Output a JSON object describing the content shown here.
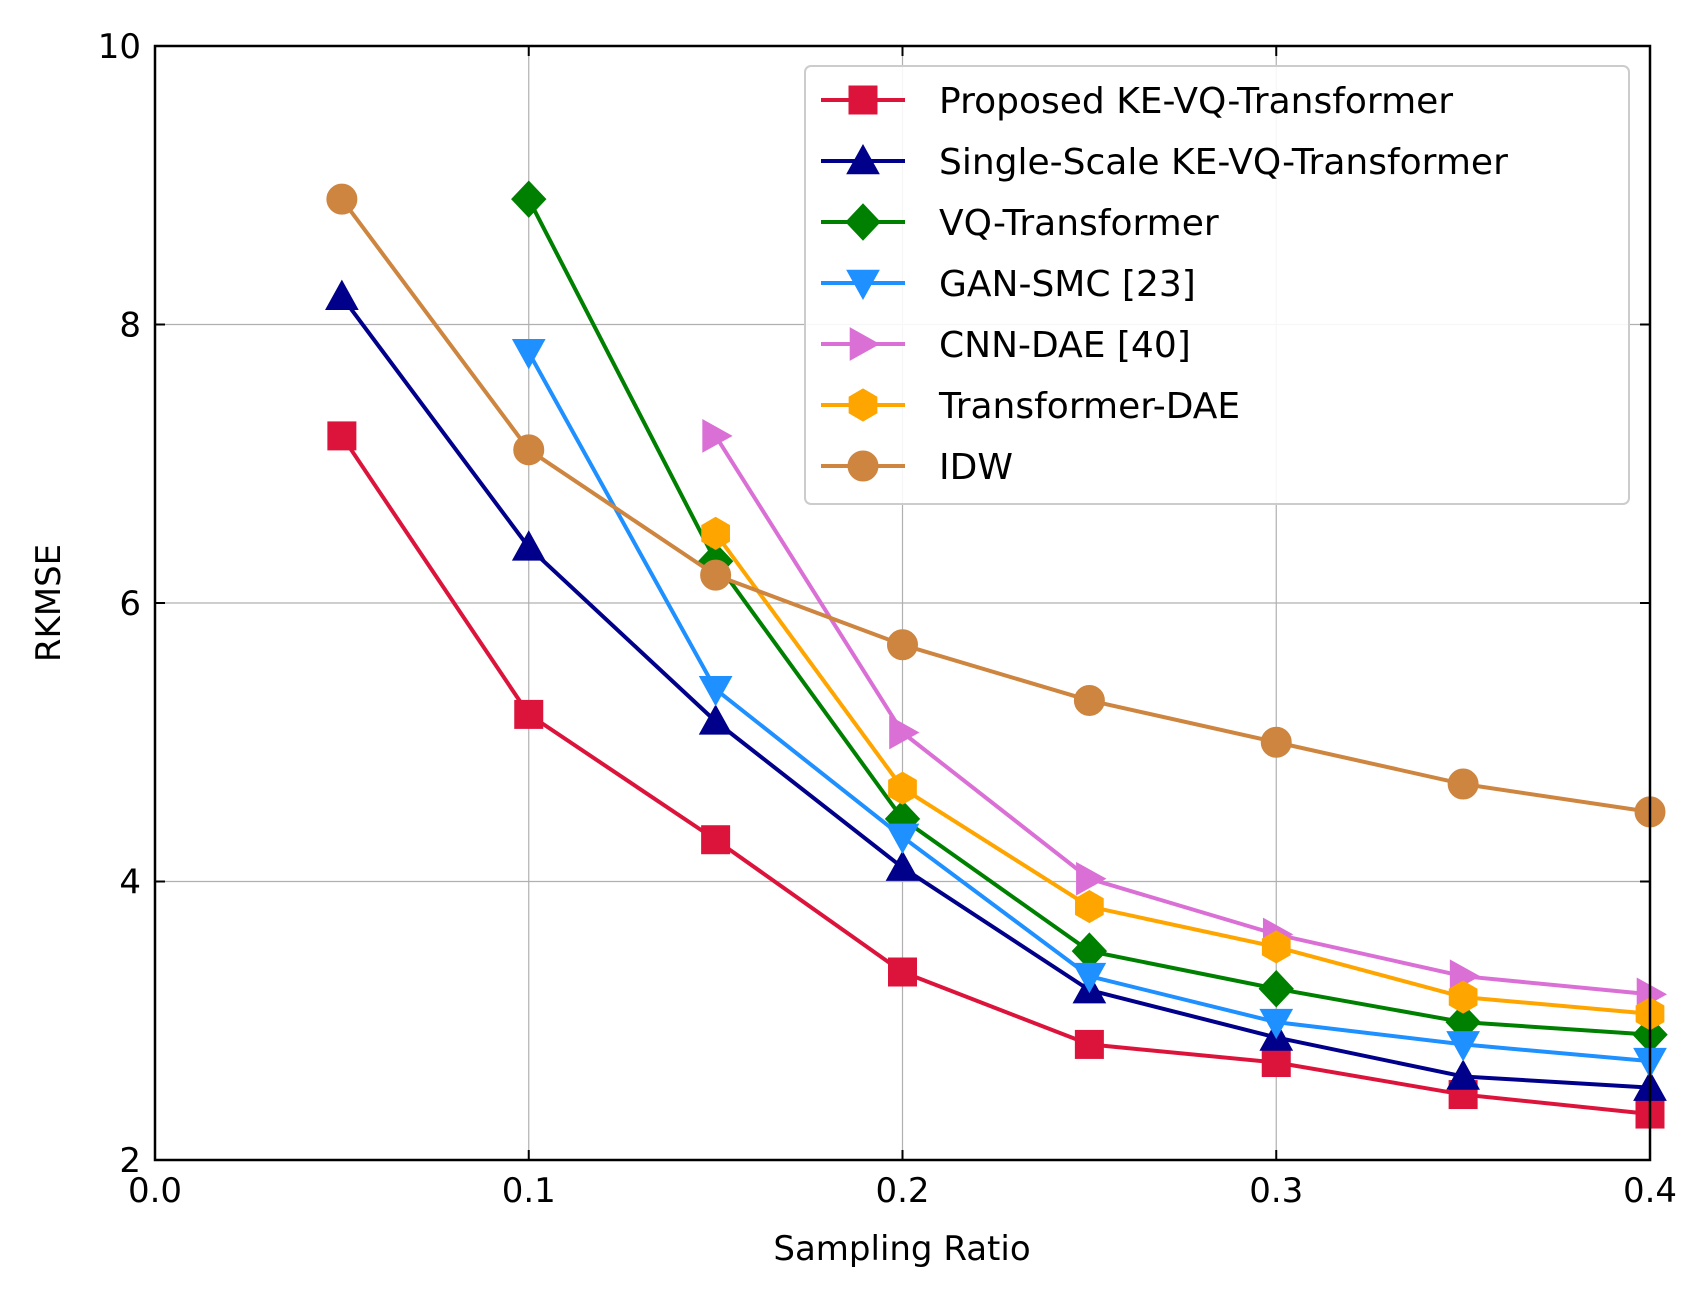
{
  "chart_data": {
    "type": "line",
    "title": "",
    "xlabel": "Sampling Ratio",
    "ylabel": "RKMSE",
    "xlim": [
      0.0,
      0.4
    ],
    "ylim": [
      2,
      10
    ],
    "xticks": [
      0.0,
      0.1,
      0.2,
      0.3,
      0.4
    ],
    "xtick_labels": [
      "0.0",
      "0.1",
      "0.2",
      "0.3",
      "0.4"
    ],
    "yticks": [
      2,
      4,
      6,
      8,
      10
    ],
    "ytick_labels": [
      "2",
      "4",
      "6",
      "8",
      "10"
    ],
    "grid": true,
    "legend_position": "top-right",
    "series": [
      {
        "name": "Proposed KE-VQ-Transformer",
        "color": "#DC143C",
        "marker": "square",
        "x": [
          0.05,
          0.1,
          0.15,
          0.2,
          0.25,
          0.3,
          0.35,
          0.4
        ],
        "values": [
          7.2,
          5.2,
          4.3,
          3.35,
          2.83,
          2.7,
          2.47,
          2.33
        ]
      },
      {
        "name": "Single-Scale KE-VQ-Transformer",
        "color": "#00008B",
        "marker": "triangle-up",
        "x": [
          0.05,
          0.1,
          0.15,
          0.2,
          0.25,
          0.3,
          0.35,
          0.4
        ],
        "values": [
          8.2,
          6.4,
          5.15,
          4.1,
          3.22,
          2.88,
          2.6,
          2.52
        ]
      },
      {
        "name": "VQ-Transformer",
        "color": "#008000",
        "marker": "diamond",
        "x": [
          0.1,
          0.15,
          0.2,
          0.25,
          0.3,
          0.35,
          0.4
        ],
        "values": [
          8.9,
          6.3,
          4.45,
          3.5,
          3.23,
          2.99,
          2.9
        ]
      },
      {
        "name": "GAN-SMC [23]",
        "color": "#1E90FF",
        "marker": "triangle-down",
        "x": [
          0.1,
          0.15,
          0.2,
          0.25,
          0.3,
          0.35,
          0.4
        ],
        "values": [
          7.8,
          5.38,
          4.32,
          3.32,
          2.99,
          2.83,
          2.71
        ]
      },
      {
        "name": "CNN-DAE [40]",
        "color": "#DA70D6",
        "marker": "triangle-right",
        "x": [
          0.15,
          0.2,
          0.25,
          0.3,
          0.35,
          0.4
        ],
        "values": [
          7.2,
          5.07,
          4.02,
          3.62,
          3.32,
          3.19
        ]
      },
      {
        "name": "Transformer-DAE",
        "color": "#FFA500",
        "marker": "hexagon",
        "x": [
          0.15,
          0.2,
          0.25,
          0.3,
          0.35,
          0.4
        ],
        "values": [
          6.5,
          4.67,
          3.82,
          3.53,
          3.17,
          3.05
        ]
      },
      {
        "name": "IDW",
        "color": "#CD853F",
        "marker": "circle",
        "x": [
          0.05,
          0.1,
          0.15,
          0.2,
          0.25,
          0.3,
          0.35,
          0.4
        ],
        "values": [
          8.9,
          7.1,
          6.2,
          5.7,
          5.3,
          5.0,
          4.7,
          4.5
        ]
      }
    ]
  }
}
